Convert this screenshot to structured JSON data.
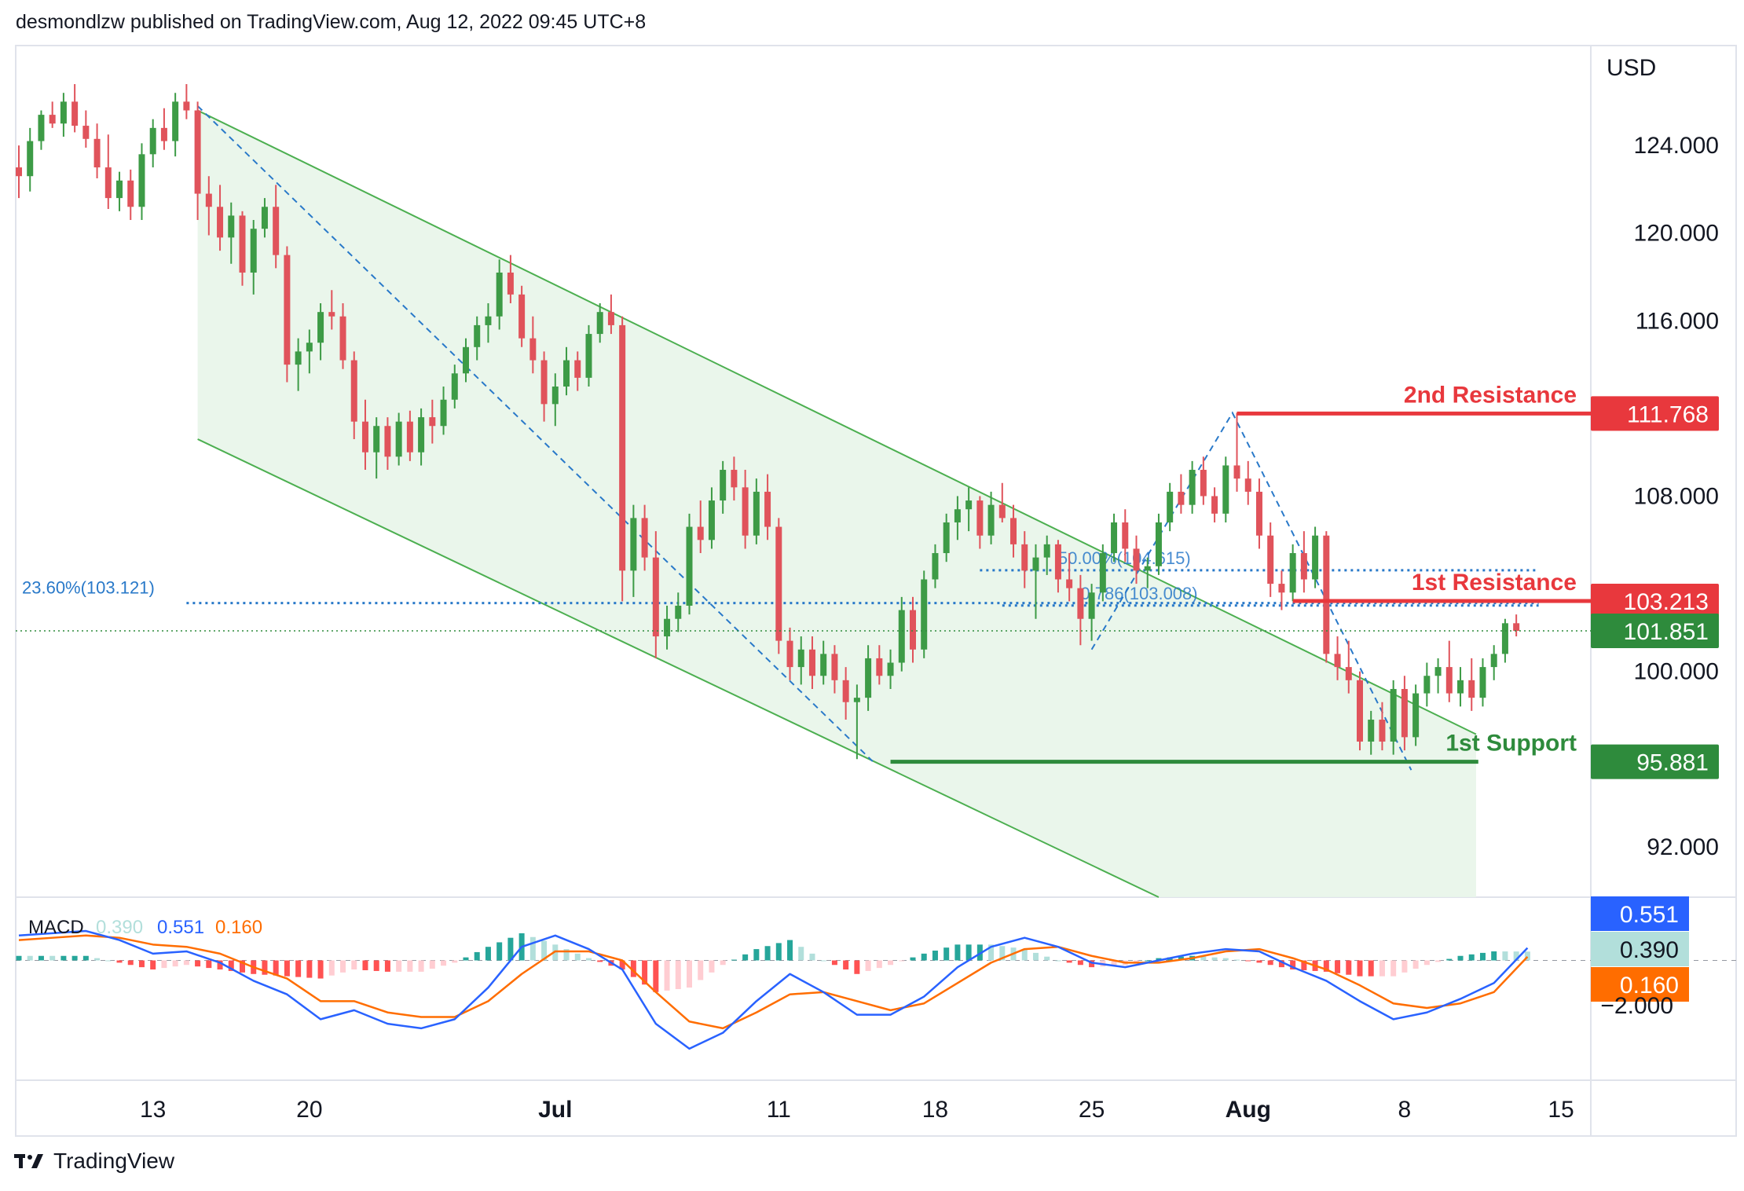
{
  "header": {
    "publisher": "desmondlzw published on TradingView.com, Aug 12, 2022 09:45 UTC+8"
  },
  "footer": {
    "brand": "TradingView",
    "logo_icon": "tradingview-logo-icon"
  },
  "colors": {
    "up": "#26a69a",
    "up_candle": "#3d9b46",
    "down_candle": "#e0535b",
    "resistance": "#e8383d",
    "support": "#2e8b3c",
    "fib": "#2962ff",
    "channel_fill": "#e8f5e9",
    "channel_line": "#4caf50",
    "macd_line": "#2962ff",
    "signal_line": "#ff6d00",
    "hist_pos_strong": "#26a69a",
    "hist_pos_weak": "#b2dfdb",
    "hist_neg_strong": "#ff5252",
    "hist_neg_weak": "#ffcdd2"
  },
  "chart_data": {
    "type": "candlestick",
    "currency": "USD",
    "y_ticks": [
      "124.000",
      "120.000",
      "116.000",
      "108.000",
      "100.000",
      "92.000"
    ],
    "ylim": [
      89.7,
      128.2
    ],
    "x_ticks": [
      {
        "label": "13",
        "bold": false,
        "day": 6
      },
      {
        "label": "20",
        "bold": false,
        "day": 13
      },
      {
        "label": "Jul",
        "bold": true,
        "day": 24
      },
      {
        "label": "11",
        "bold": false,
        "day": 34
      },
      {
        "label": "18",
        "bold": false,
        "day": 41
      },
      {
        "label": "25",
        "bold": false,
        "day": 48
      },
      {
        "label": "Aug",
        "bold": true,
        "day": 55
      },
      {
        "label": "8",
        "bold": false,
        "day": 62
      },
      {
        "label": "15",
        "bold": false,
        "day": 69
      }
    ],
    "last_price": "101.851",
    "last_price_value": 101.851,
    "levels": [
      {
        "label": "2nd Resistance",
        "value": 111.768,
        "value_label": "111.768",
        "kind": "resistance",
        "from_day": 54.5
      },
      {
        "label": "1st Resistance",
        "value": 103.213,
        "value_label": "103.213",
        "kind": "resistance",
        "from_day": 57.0
      },
      {
        "label": "1st Support",
        "value": 95.881,
        "value_label": "95.881",
        "kind": "support",
        "from_day": 39.0
      }
    ],
    "fib_levels": [
      {
        "label": "23.60%(103.121)",
        "value": 103.121
      },
      {
        "label": "50.00%(104.615)",
        "value": 104.615
      },
      {
        "label": "0.786(103.008)",
        "value": 103.008
      }
    ],
    "channel": {
      "upper": [
        [
          8,
          125.6
        ],
        [
          51,
          104.2
        ]
      ],
      "lower": [
        [
          8,
          110.6
        ],
        [
          51,
          89.7
        ]
      ],
      "right_fill_day": 65.2
    },
    "fib_swings": [
      [
        [
          8,
          125.8
        ],
        [
          38.2,
          95.9
        ]
      ],
      [
        [
          48,
          101.0
        ],
        [
          54.3,
          111.8
        ],
        [
          62.3,
          95.5
        ]
      ]
    ],
    "candles": [
      [
        0,
        123.0,
        124.0,
        121.6,
        122.6
      ],
      [
        0.5,
        122.6,
        124.8,
        121.9,
        124.2
      ],
      [
        1,
        124.2,
        125.6,
        123.8,
        125.4
      ],
      [
        1.5,
        125.4,
        126.0,
        124.8,
        125.0
      ],
      [
        2,
        125.0,
        126.4,
        124.4,
        126.0
      ],
      [
        2.5,
        126.0,
        126.8,
        124.6,
        124.9
      ],
      [
        3,
        124.9,
        125.6,
        123.9,
        124.3
      ],
      [
        3.5,
        124.3,
        125.0,
        122.5,
        123.0
      ],
      [
        4,
        123.0,
        124.5,
        121.1,
        121.6
      ],
      [
        4.5,
        121.6,
        122.8,
        121.0,
        122.4
      ],
      [
        5,
        122.4,
        122.9,
        120.6,
        121.2
      ],
      [
        5.5,
        121.2,
        124.1,
        120.6,
        123.6
      ],
      [
        6,
        123.6,
        125.2,
        123.0,
        124.8
      ],
      [
        6.5,
        124.8,
        125.7,
        123.8,
        124.2
      ],
      [
        7,
        124.2,
        126.4,
        123.5,
        126.0
      ],
      [
        7.5,
        126.0,
        126.8,
        125.2,
        125.6
      ],
      [
        8,
        125.6,
        126.0,
        120.6,
        121.8
      ],
      [
        8.5,
        121.8,
        122.6,
        119.9,
        121.2
      ],
      [
        9,
        121.2,
        122.2,
        119.2,
        119.8
      ],
      [
        9.5,
        119.8,
        121.4,
        118.6,
        120.8
      ],
      [
        10,
        120.8,
        121.0,
        117.6,
        118.2
      ],
      [
        10.5,
        118.2,
        120.6,
        117.2,
        120.2
      ],
      [
        11,
        120.2,
        121.6,
        119.8,
        121.2
      ],
      [
        11.5,
        121.2,
        122.2,
        118.4,
        119.0
      ],
      [
        12,
        119.0,
        119.4,
        113.2,
        114.0
      ],
      [
        12.5,
        114.0,
        115.2,
        112.8,
        114.6
      ],
      [
        13,
        114.6,
        115.6,
        113.6,
        115.0
      ],
      [
        13.5,
        115.0,
        116.8,
        114.2,
        116.4
      ],
      [
        14,
        116.4,
        117.4,
        115.6,
        116.2
      ],
      [
        14.5,
        116.2,
        116.8,
        113.8,
        114.2
      ],
      [
        15,
        114.2,
        114.6,
        110.6,
        111.4
      ],
      [
        15.5,
        111.4,
        112.4,
        109.2,
        110.0
      ],
      [
        16,
        110.0,
        111.6,
        108.8,
        111.2
      ],
      [
        16.5,
        111.2,
        111.6,
        109.2,
        109.8
      ],
      [
        17,
        109.8,
        111.8,
        109.4,
        111.4
      ],
      [
        17.5,
        111.4,
        111.9,
        109.6,
        110.0
      ],
      [
        18,
        110.0,
        112.0,
        109.4,
        111.6
      ],
      [
        18.5,
        111.6,
        112.4,
        110.4,
        111.2
      ],
      [
        19,
        111.2,
        113.0,
        110.8,
        112.4
      ],
      [
        19.5,
        112.4,
        114.0,
        112.0,
        113.6
      ],
      [
        20,
        113.6,
        115.2,
        113.2,
        114.8
      ],
      [
        20.5,
        114.8,
        116.2,
        114.2,
        115.8
      ],
      [
        21,
        115.8,
        116.8,
        115.0,
        116.2
      ],
      [
        21.5,
        116.2,
        118.8,
        115.6,
        118.2
      ],
      [
        22,
        118.2,
        119.0,
        116.8,
        117.2
      ],
      [
        22.5,
        117.2,
        117.6,
        114.8,
        115.2
      ],
      [
        23,
        115.2,
        116.2,
        113.6,
        114.2
      ],
      [
        23.5,
        114.2,
        114.6,
        111.4,
        112.2
      ],
      [
        24,
        112.2,
        113.6,
        111.2,
        113.0
      ],
      [
        24.5,
        113.0,
        114.8,
        112.6,
        114.2
      ],
      [
        25,
        114.2,
        114.6,
        112.8,
        113.4
      ],
      [
        25.5,
        113.4,
        115.8,
        113.0,
        115.4
      ],
      [
        26,
        115.4,
        116.8,
        115.0,
        116.4
      ],
      [
        26.5,
        116.4,
        117.2,
        115.4,
        115.8
      ],
      [
        27,
        115.8,
        116.2,
        103.2,
        104.6
      ],
      [
        27.5,
        104.6,
        107.6,
        103.4,
        107.0
      ],
      [
        28,
        107.0,
        107.6,
        104.6,
        105.2
      ],
      [
        28.5,
        105.2,
        106.4,
        100.6,
        101.6
      ],
      [
        29,
        101.6,
        103.0,
        101.0,
        102.4
      ],
      [
        29.5,
        102.4,
        103.6,
        101.8,
        103.0
      ],
      [
        30,
        103.0,
        107.2,
        102.6,
        106.6
      ],
      [
        30.5,
        106.6,
        107.8,
        105.4,
        106.0
      ],
      [
        31,
        106.0,
        108.4,
        105.6,
        107.8
      ],
      [
        31.5,
        107.8,
        109.6,
        107.2,
        109.2
      ],
      [
        32,
        109.2,
        109.8,
        107.8,
        108.4
      ],
      [
        32.5,
        108.4,
        109.2,
        105.6,
        106.2
      ],
      [
        33,
        106.2,
        108.8,
        105.8,
        108.2
      ],
      [
        33.5,
        108.2,
        109.0,
        106.0,
        106.6
      ],
      [
        34,
        106.6,
        107.0,
        100.8,
        101.4
      ],
      [
        34.5,
        101.4,
        102.0,
        99.6,
        100.2
      ],
      [
        35,
        100.2,
        101.6,
        99.4,
        101.0
      ],
      [
        35.5,
        101.0,
        101.6,
        99.2,
        99.8
      ],
      [
        36,
        99.8,
        101.4,
        99.4,
        100.8
      ],
      [
        36.5,
        100.8,
        101.2,
        99.0,
        99.6
      ],
      [
        37,
        99.6,
        100.2,
        97.8,
        98.6
      ],
      [
        37.5,
        98.6,
        99.4,
        96.0,
        98.8
      ],
      [
        38,
        98.8,
        101.2,
        98.2,
        100.6
      ],
      [
        38.5,
        100.6,
        101.2,
        99.4,
        99.8
      ],
      [
        39,
        99.8,
        101.0,
        99.2,
        100.4
      ],
      [
        39.5,
        100.4,
        103.4,
        100.0,
        102.8
      ],
      [
        40,
        102.8,
        103.4,
        100.4,
        101.0
      ],
      [
        40.5,
        101.0,
        104.6,
        100.6,
        104.2
      ],
      [
        41,
        104.2,
        105.8,
        103.8,
        105.4
      ],
      [
        41.5,
        105.4,
        107.2,
        105.0,
        106.8
      ],
      [
        42,
        106.8,
        108.0,
        106.0,
        107.4
      ],
      [
        42.5,
        107.4,
        108.4,
        106.4,
        107.8
      ],
      [
        43,
        107.8,
        108.0,
        105.6,
        106.2
      ],
      [
        43.5,
        106.2,
        108.2,
        105.8,
        107.6
      ],
      [
        44,
        107.6,
        108.6,
        106.8,
        107.0
      ],
      [
        44.5,
        107.0,
        107.6,
        105.2,
        105.8
      ],
      [
        45,
        105.8,
        106.4,
        103.8,
        104.6
      ],
      [
        45.5,
        104.6,
        105.8,
        102.4,
        105.2
      ],
      [
        46,
        105.2,
        106.2,
        104.4,
        105.8
      ],
      [
        46.5,
        105.8,
        106.0,
        103.6,
        104.2
      ],
      [
        47,
        104.2,
        105.4,
        103.2,
        103.8
      ],
      [
        47.5,
        103.8,
        104.4,
        101.2,
        102.4
      ],
      [
        48,
        102.4,
        104.0,
        101.4,
        103.6
      ],
      [
        48.5,
        103.6,
        105.8,
        103.2,
        105.4
      ],
      [
        49,
        105.4,
        107.2,
        105.0,
        106.8
      ],
      [
        49.5,
        106.8,
        107.4,
        105.0,
        105.6
      ],
      [
        50,
        105.6,
        106.2,
        104.0,
        104.6
      ],
      [
        50.5,
        104.6,
        105.2,
        103.8,
        104.8
      ],
      [
        51,
        104.8,
        107.2,
        104.4,
        106.8
      ],
      [
        51.5,
        106.8,
        108.6,
        106.4,
        108.2
      ],
      [
        52,
        108.2,
        109.0,
        107.2,
        107.6
      ],
      [
        52.5,
        107.6,
        109.6,
        107.2,
        109.2
      ],
      [
        53,
        109.2,
        109.8,
        107.6,
        108.0
      ],
      [
        53.5,
        108.0,
        108.4,
        106.8,
        107.2
      ],
      [
        54,
        107.2,
        109.8,
        106.8,
        109.4
      ],
      [
        54.5,
        109.4,
        111.8,
        108.2,
        108.8
      ],
      [
        55,
        108.8,
        109.6,
        107.6,
        108.2
      ],
      [
        55.5,
        108.2,
        108.8,
        105.6,
        106.2
      ],
      [
        56,
        106.2,
        106.8,
        103.4,
        104.0
      ],
      [
        56.5,
        104.0,
        104.6,
        102.8,
        103.6
      ],
      [
        57,
        103.6,
        105.8,
        103.2,
        105.4
      ],
      [
        57.5,
        105.4,
        106.4,
        103.6,
        104.2
      ],
      [
        58,
        104.2,
        106.6,
        103.8,
        106.2
      ],
      [
        58.5,
        106.2,
        106.4,
        100.4,
        100.8
      ],
      [
        59,
        100.8,
        101.6,
        99.6,
        100.2
      ],
      [
        59.5,
        100.2,
        101.4,
        99.0,
        99.6
      ],
      [
        60,
        99.6,
        100.0,
        96.4,
        96.8
      ],
      [
        60.5,
        96.8,
        98.2,
        96.2,
        97.8
      ],
      [
        61,
        97.8,
        98.6,
        96.4,
        96.8
      ],
      [
        61.5,
        96.8,
        99.6,
        96.2,
        99.2
      ],
      [
        62,
        99.2,
        99.8,
        96.4,
        97.0
      ],
      [
        62.5,
        97.0,
        99.4,
        96.6,
        99.0
      ],
      [
        63,
        99.0,
        100.4,
        98.4,
        99.8
      ],
      [
        63.5,
        99.8,
        100.6,
        99.0,
        100.2
      ],
      [
        64,
        100.2,
        101.4,
        98.6,
        99.0
      ],
      [
        64.5,
        99.0,
        100.2,
        98.4,
        99.6
      ],
      [
        65,
        99.6,
        100.6,
        98.2,
        98.8
      ],
      [
        65.5,
        98.8,
        100.6,
        98.4,
        100.2
      ],
      [
        66,
        100.2,
        101.2,
        99.6,
        100.8
      ],
      [
        66.5,
        100.8,
        102.4,
        100.4,
        102.2
      ],
      [
        67,
        102.2,
        102.6,
        101.6,
        101.851
      ]
    ]
  },
  "macd": {
    "label": "MACD",
    "histogram_value": "0.390",
    "macd_value": "0.551",
    "signal_value": "0.160",
    "y_tick": "−2.000",
    "ylim": [
      -4.6,
      2.1
    ],
    "macd": [
      [
        0,
        1.1
      ],
      [
        1.5,
        1.2
      ],
      [
        3,
        1.3
      ],
      [
        4.5,
        0.9
      ],
      [
        6,
        0.3
      ],
      [
        7.5,
        0.4
      ],
      [
        9,
        -0.1
      ],
      [
        10.5,
        -0.9
      ],
      [
        12,
        -1.5
      ],
      [
        13.5,
        -2.6
      ],
      [
        15,
        -2.2
      ],
      [
        16.5,
        -2.8
      ],
      [
        18,
        -3.0
      ],
      [
        19.5,
        -2.6
      ],
      [
        21,
        -1.2
      ],
      [
        22.5,
        0.6
      ],
      [
        24,
        1.1
      ],
      [
        25.5,
        0.5
      ],
      [
        27,
        -0.4
      ],
      [
        28.5,
        -2.8
      ],
      [
        30,
        -3.9
      ],
      [
        31.5,
        -3.2
      ],
      [
        33,
        -1.8
      ],
      [
        34.5,
        -0.6
      ],
      [
        36,
        -1.4
      ],
      [
        37.5,
        -2.4
      ],
      [
        39,
        -2.4
      ],
      [
        40.5,
        -1.6
      ],
      [
        42,
        -0.3
      ],
      [
        43.5,
        0.6
      ],
      [
        45,
        1.0
      ],
      [
        46.5,
        0.6
      ],
      [
        48,
        -0.1
      ],
      [
        49.5,
        -0.3
      ],
      [
        51,
        0.0
      ],
      [
        52.5,
        0.3
      ],
      [
        54,
        0.5
      ],
      [
        55.5,
        0.4
      ],
      [
        57,
        -0.3
      ],
      [
        58.5,
        -0.9
      ],
      [
        60,
        -1.8
      ],
      [
        61.5,
        -2.6
      ],
      [
        63,
        -2.3
      ],
      [
        64.5,
        -1.7
      ],
      [
        66,
        -1.0
      ],
      [
        67.5,
        0.551
      ]
    ],
    "signal": [
      [
        0,
        0.9
      ],
      [
        1.5,
        1.0
      ],
      [
        3,
        1.1
      ],
      [
        4.5,
        1.0
      ],
      [
        6,
        0.7
      ],
      [
        7.5,
        0.6
      ],
      [
        9,
        0.3
      ],
      [
        10.5,
        -0.3
      ],
      [
        12,
        -0.8
      ],
      [
        13.5,
        -1.8
      ],
      [
        15,
        -1.8
      ],
      [
        16.5,
        -2.3
      ],
      [
        18,
        -2.5
      ],
      [
        19.5,
        -2.5
      ],
      [
        21,
        -1.8
      ],
      [
        22.5,
        -0.6
      ],
      [
        24,
        0.4
      ],
      [
        25.5,
        0.4
      ],
      [
        27,
        0.0
      ],
      [
        28.5,
        -1.4
      ],
      [
        30,
        -2.7
      ],
      [
        31.5,
        -3.0
      ],
      [
        33,
        -2.3
      ],
      [
        34.5,
        -1.5
      ],
      [
        36,
        -1.4
      ],
      [
        37.5,
        -1.8
      ],
      [
        39,
        -2.2
      ],
      [
        40.5,
        -1.9
      ],
      [
        42,
        -1.0
      ],
      [
        43.5,
        -0.1
      ],
      [
        45,
        0.5
      ],
      [
        46.5,
        0.6
      ],
      [
        48,
        0.2
      ],
      [
        49.5,
        -0.1
      ],
      [
        51,
        -0.1
      ],
      [
        52.5,
        0.1
      ],
      [
        54,
        0.4
      ],
      [
        55.5,
        0.5
      ],
      [
        57,
        0.1
      ],
      [
        58.5,
        -0.4
      ],
      [
        60,
        -1.1
      ],
      [
        61.5,
        -1.9
      ],
      [
        63,
        -2.1
      ],
      [
        64.5,
        -1.9
      ],
      [
        66,
        -1.4
      ],
      [
        67.5,
        0.16
      ]
    ]
  }
}
